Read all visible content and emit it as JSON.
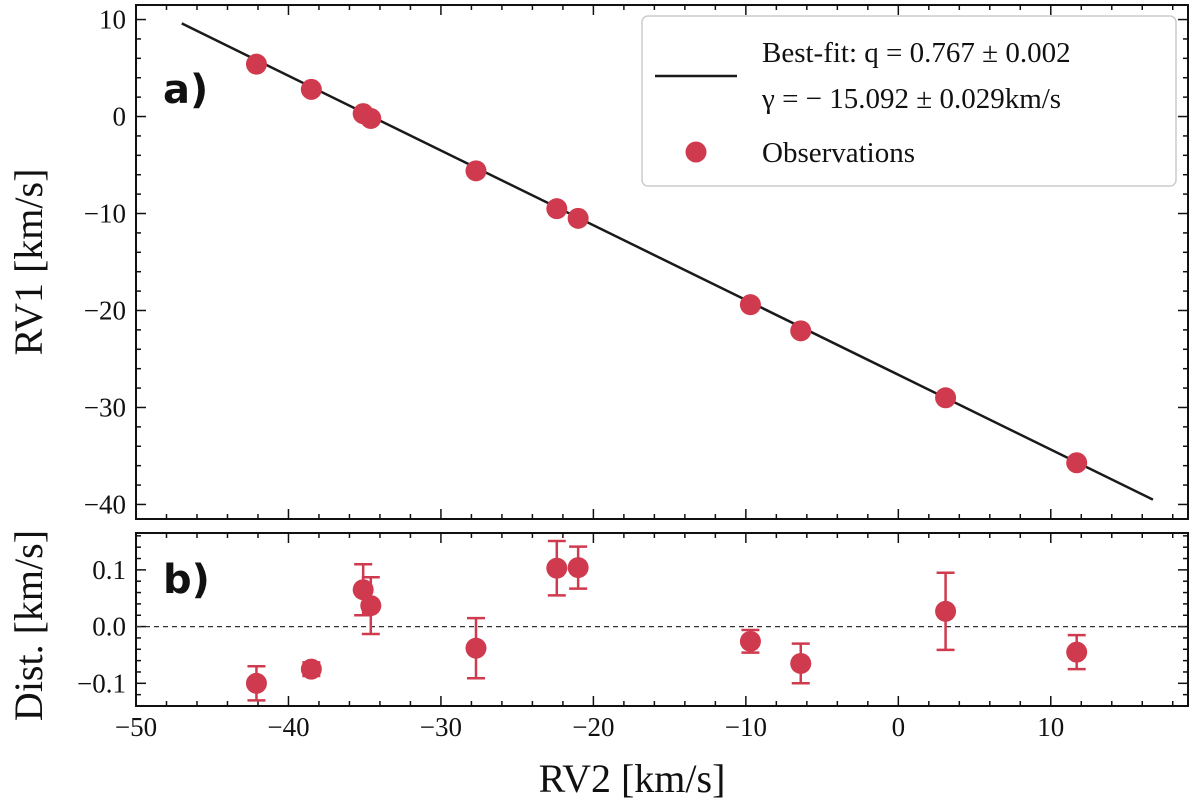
{
  "colors": {
    "points": "#d03a4e",
    "fit_line": "#1a1a1a",
    "zero_line": "#333333",
    "legend_border": "#cccccc"
  },
  "chart_data": [
    {
      "type": "scatter",
      "panel_label": "a)",
      "xlabel": "",
      "ylabel": "RV1 [km/s]",
      "xlim": [
        -50,
        19
      ],
      "ylim": [
        -41.5,
        11.5
      ],
      "xticks": [
        -50,
        -40,
        -30,
        -20,
        -10,
        0,
        10
      ],
      "yticks": [
        10,
        0,
        -10,
        -20,
        -30,
        -40
      ],
      "ytick_labels": [
        "10",
        "0",
        "−10",
        "−20",
        "−30",
        "−40"
      ],
      "grid": false,
      "legend_position": "top-right",
      "fit": {
        "name_lines": [
          "Best-fit: q = 0.767 ± 0.002",
          "γ = − 15.092 ± 0.029km/s"
        ],
        "x": [
          -47,
          16.7
        ],
        "y": [
          9.6,
          -39.5
        ]
      },
      "series": [
        {
          "name": "Observations",
          "x": [
            -42.1,
            -38.5,
            -35.1,
            -34.6,
            -27.7,
            -22.4,
            -21.0,
            -9.7,
            -6.4,
            3.1,
            11.7
          ],
          "y": [
            5.4,
            2.8,
            0.3,
            -0.2,
            -5.6,
            -9.5,
            -10.5,
            -19.4,
            -22.1,
            -29.0,
            -35.7
          ]
        }
      ]
    },
    {
      "type": "scatter",
      "panel_label": "b)",
      "xlabel": "RV2 [km/s]",
      "ylabel": "Dist. [km/s]",
      "xlim": [
        -50,
        19
      ],
      "ylim": [
        -0.14,
        0.165
      ],
      "xticks": [
        -50,
        -40,
        -30,
        -20,
        -10,
        0,
        10
      ],
      "xtick_labels": [
        "−50",
        "−40",
        "−30",
        "−20",
        "−10",
        "0",
        "10"
      ],
      "yticks": [
        0.1,
        0.0,
        -0.1
      ],
      "ytick_labels": [
        "0.1",
        "0.0",
        "−0.1"
      ],
      "grid": false,
      "reference_line": 0.0,
      "series": [
        {
          "name": "",
          "x": [
            -42.1,
            -38.5,
            -35.1,
            -34.6,
            -27.7,
            -22.4,
            -21.0,
            -9.7,
            -6.4,
            3.1,
            11.7
          ],
          "y": [
            -0.1,
            -0.075,
            0.065,
            0.037,
            -0.038,
            0.103,
            0.104,
            -0.026,
            -0.065,
            0.027,
            -0.045
          ],
          "yerr": [
            0.03,
            0.012,
            0.045,
            0.05,
            0.053,
            0.048,
            0.037,
            0.02,
            0.035,
            0.068,
            0.03
          ]
        }
      ]
    }
  ]
}
